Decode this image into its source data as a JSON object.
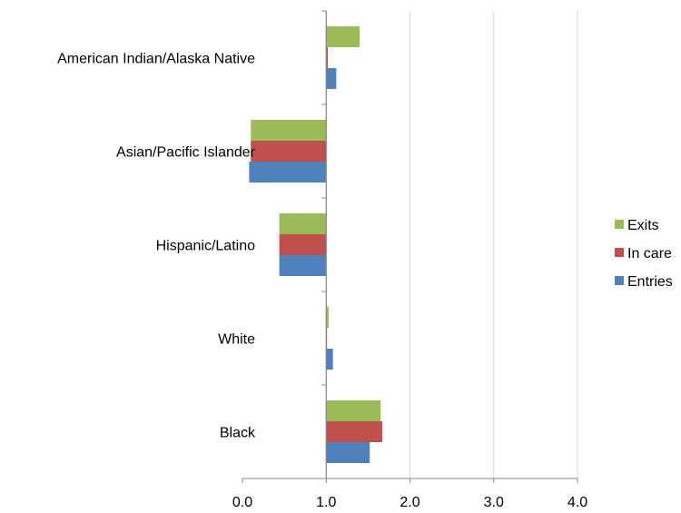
{
  "chart_data": {
    "type": "bar",
    "orientation": "horizontal",
    "title": "",
    "xlabel": "",
    "ylabel": "",
    "categories": [
      "American Indian/Alaska Native",
      "Asian/Pacific Islander",
      "Hispanic/Latino",
      "White",
      "Black"
    ],
    "series": [
      {
        "name": "Exits",
        "color": "#9bbb59",
        "values": [
          1.4,
          0.1,
          0.44,
          1.03,
          1.65
        ]
      },
      {
        "name": "In care",
        "color": "#c0504d",
        "values": [
          1.02,
          0.1,
          0.44,
          1.01,
          1.67
        ]
      },
      {
        "name": "Entries",
        "color": "#4f81bd",
        "values": [
          1.12,
          0.08,
          0.44,
          1.08,
          1.52
        ]
      }
    ],
    "baseline": 1.0,
    "xlim": [
      0.0,
      4.0
    ],
    "xticks": [
      "0.0",
      "1.0",
      "2.0",
      "3.0",
      "4.0"
    ],
    "grid": true,
    "legend_position": "right"
  }
}
